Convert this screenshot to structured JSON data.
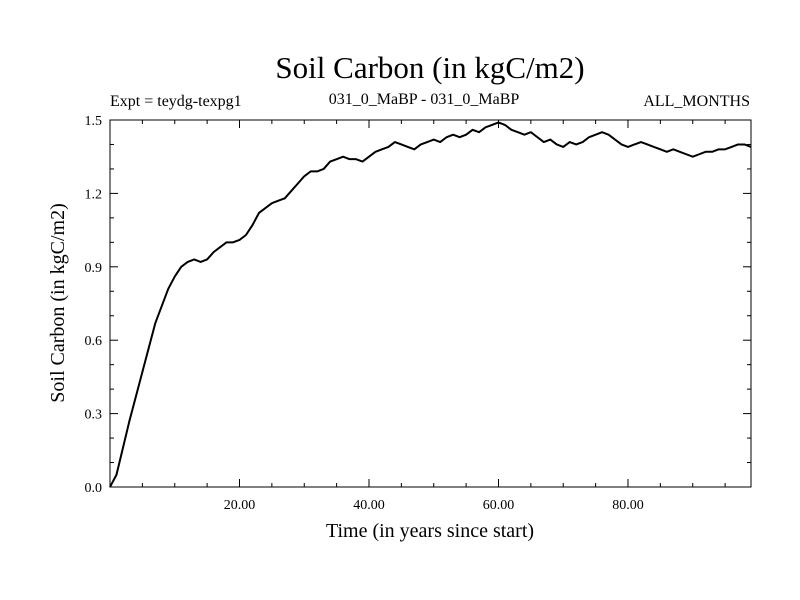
{
  "chart_data": {
    "type": "line",
    "title": "Soil Carbon (in kgC/m2)",
    "subtitle_left": "Expt = teydg-texpg1",
    "subtitle_center": "031_0_MaBP - 031_0_MaBP",
    "subtitle_right": "ALL_MONTHS",
    "xlabel": "Time (in years since start)",
    "ylabel": "Soil Carbon (in kgC/m2)",
    "xlim": [
      0,
      99
    ],
    "ylim": [
      0.0,
      1.5
    ],
    "xticks": [
      20,
      40,
      60,
      80
    ],
    "xtick_labels": [
      "20.00",
      "40.00",
      "60.00",
      "80.00"
    ],
    "yticks": [
      0.0,
      0.3,
      0.6,
      0.9,
      1.2,
      1.5
    ],
    "ytick_labels": [
      "0.0",
      "0.3",
      "0.6",
      "0.9",
      "1.2",
      "1.5"
    ],
    "series": [
      {
        "name": "Soil Carbon",
        "color": "#000000",
        "x": [
          0,
          1,
          2,
          3,
          4,
          5,
          6,
          7,
          8,
          9,
          10,
          11,
          12,
          13,
          14,
          15,
          16,
          17,
          18,
          19,
          20,
          21,
          22,
          23,
          24,
          25,
          26,
          27,
          28,
          29,
          30,
          31,
          32,
          33,
          34,
          35,
          36,
          37,
          38,
          39,
          40,
          41,
          42,
          43,
          44,
          45,
          46,
          47,
          48,
          49,
          50,
          51,
          52,
          53,
          54,
          55,
          56,
          57,
          58,
          59,
          60,
          61,
          62,
          63,
          64,
          65,
          66,
          67,
          68,
          69,
          70,
          71,
          72,
          73,
          74,
          75,
          76,
          77,
          78,
          79,
          80,
          81,
          82,
          83,
          84,
          85,
          86,
          87,
          88,
          89,
          90,
          91,
          92,
          93,
          94,
          95,
          96,
          97,
          98,
          99
        ],
        "values": [
          0.0,
          0.05,
          0.16,
          0.27,
          0.37,
          0.47,
          0.57,
          0.67,
          0.74,
          0.81,
          0.86,
          0.9,
          0.92,
          0.93,
          0.92,
          0.93,
          0.96,
          0.98,
          1.0,
          1.0,
          1.01,
          1.03,
          1.07,
          1.12,
          1.14,
          1.16,
          1.17,
          1.18,
          1.21,
          1.24,
          1.27,
          1.29,
          1.29,
          1.3,
          1.33,
          1.34,
          1.35,
          1.34,
          1.34,
          1.33,
          1.35,
          1.37,
          1.38,
          1.39,
          1.41,
          1.4,
          1.39,
          1.38,
          1.4,
          1.41,
          1.42,
          1.41,
          1.43,
          1.44,
          1.43,
          1.44,
          1.46,
          1.45,
          1.47,
          1.48,
          1.49,
          1.48,
          1.46,
          1.45,
          1.44,
          1.45,
          1.43,
          1.41,
          1.42,
          1.4,
          1.39,
          1.41,
          1.4,
          1.41,
          1.43,
          1.44,
          1.45,
          1.44,
          1.42,
          1.4,
          1.39,
          1.4,
          1.41,
          1.4,
          1.39,
          1.38,
          1.37,
          1.38,
          1.37,
          1.36,
          1.35,
          1.36,
          1.37,
          1.37,
          1.38,
          1.38,
          1.39,
          1.4,
          1.4,
          1.39
        ]
      }
    ]
  }
}
